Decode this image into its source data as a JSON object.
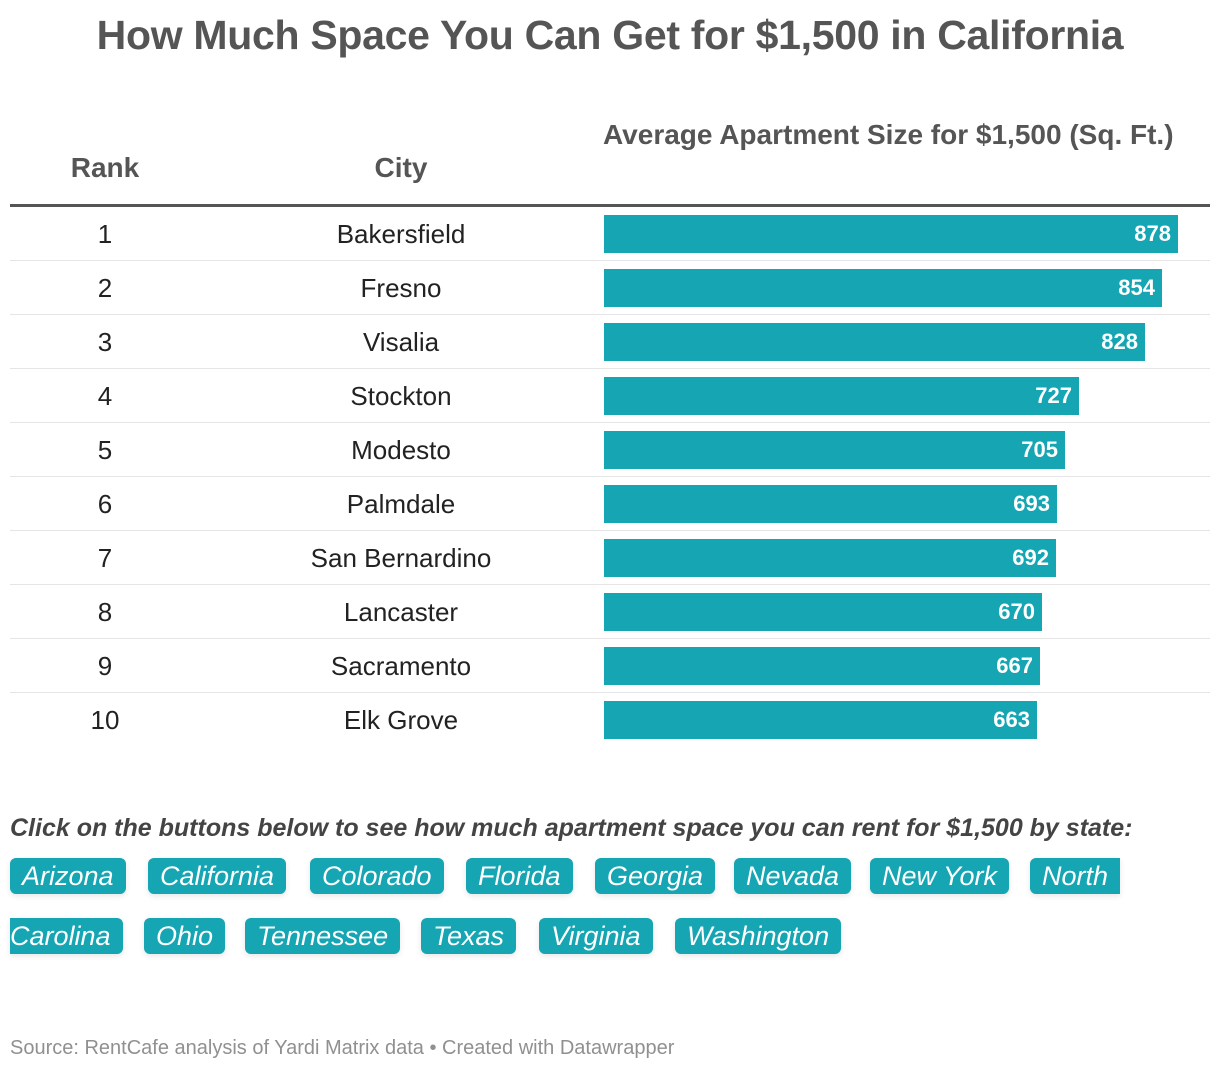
{
  "title": "How Much Space You Can Get for $1,500 in California",
  "chart_data": {
    "type": "table",
    "title": "How Much Space You Can Get for $1,500 in California",
    "columns": [
      "Rank",
      "City",
      "Average Apartment Size for $1,500 (Sq. Ft.)"
    ],
    "rows": [
      {
        "rank": "1",
        "city": "Bakersfield",
        "value": 878
      },
      {
        "rank": "2",
        "city": "Fresno",
        "value": 854
      },
      {
        "rank": "3",
        "city": "Visalia",
        "value": 828
      },
      {
        "rank": "4",
        "city": "Stockton",
        "value": 727
      },
      {
        "rank": "5",
        "city": "Modesto",
        "value": 705
      },
      {
        "rank": "6",
        "city": "Palmdale",
        "value": 693
      },
      {
        "rank": "7",
        "city": "San Bernardino",
        "value": 692
      },
      {
        "rank": "8",
        "city": "Lancaster",
        "value": 670
      },
      {
        "rank": "9",
        "city": "Sacramento",
        "value": 667
      },
      {
        "rank": "10",
        "city": "Elk Grove",
        "value": 663
      }
    ],
    "bar_max": 878
  },
  "prompt": "Click on the buttons below to see how much apartment space you can rent for $1,500 by state:",
  "buttons": [
    "Arizona",
    "California",
    "Colorado",
    "Florida",
    "Georgia",
    "Nevada",
    "New York",
    "North",
    "Carolina",
    "Ohio",
    "Tennessee",
    "Texas",
    "Virginia",
    "Washington"
  ],
  "footer": "Source: RentCafe analysis of Yardi Matrix data • Created with Datawrapper",
  "colors": {
    "bar": "#15a5b3",
    "header_text": "#555555"
  }
}
